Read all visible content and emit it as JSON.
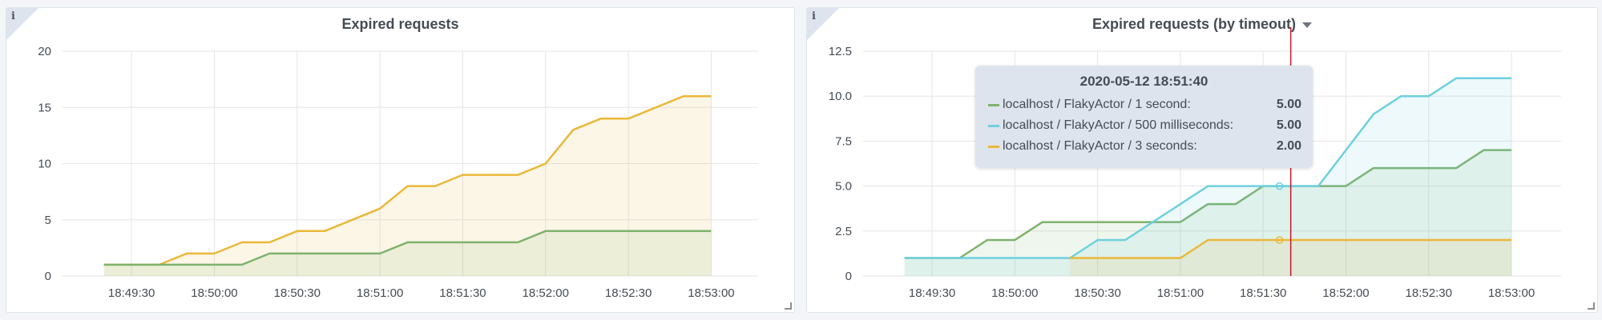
{
  "colors": {
    "green": "#7eb26d",
    "cyan": "#6ed0e0",
    "yellow": "#eab839",
    "cursor": "#c4162a"
  },
  "chart_data": [
    {
      "type": "area",
      "title": "Expired requests",
      "x_ticks": [
        "18:49:30",
        "18:50:00",
        "18:50:30",
        "18:51:00",
        "18:51:30",
        "18:52:00",
        "18:52:30",
        "18:53:00"
      ],
      "y_ticks": [
        "0",
        "5",
        "10",
        "15",
        "20"
      ],
      "ylim": [
        0,
        20
      ],
      "xlim": [
        "18:49:05",
        "18:53:17"
      ],
      "grid": true,
      "series": [
        {
          "color": "yellow",
          "points": [
            [
              "18:49:20",
              1
            ],
            [
              "18:49:40",
              1
            ],
            [
              "18:49:50",
              2
            ],
            [
              "18:50:00",
              2
            ],
            [
              "18:50:10",
              3
            ],
            [
              "18:50:20",
              3
            ],
            [
              "18:50:30",
              4
            ],
            [
              "18:50:40",
              4
            ],
            [
              "18:51:00",
              6
            ],
            [
              "18:51:10",
              8
            ],
            [
              "18:51:20",
              8
            ],
            [
              "18:51:30",
              9
            ],
            [
              "18:51:50",
              9
            ],
            [
              "18:52:00",
              10
            ],
            [
              "18:52:10",
              13
            ],
            [
              "18:52:20",
              14
            ],
            [
              "18:52:30",
              14
            ],
            [
              "18:52:50",
              16
            ],
            [
              "18:53:00",
              16
            ]
          ]
        },
        {
          "color": "green",
          "points": [
            [
              "18:49:20",
              1
            ],
            [
              "18:50:10",
              1
            ],
            [
              "18:50:20",
              2
            ],
            [
              "18:51:00",
              2
            ],
            [
              "18:51:10",
              3
            ],
            [
              "18:51:50",
              3
            ],
            [
              "18:52:00",
              4
            ],
            [
              "18:53:00",
              4
            ]
          ]
        }
      ]
    },
    {
      "type": "area",
      "title": "Expired requests (by timeout)",
      "x_ticks": [
        "18:49:30",
        "18:50:00",
        "18:50:30",
        "18:51:00",
        "18:51:30",
        "18:52:00",
        "18:52:30",
        "18:53:00"
      ],
      "y_ticks": [
        "0",
        "2.5",
        "5.0",
        "7.5",
        "10.0",
        "12.5"
      ],
      "ylim": [
        0,
        12.5
      ],
      "xlim": [
        "18:49:05",
        "18:53:18"
      ],
      "grid": true,
      "cursor_x": "18:51:40",
      "series": [
        {
          "name": "localhost / FlakyActor / 1 second",
          "color": "green",
          "points": [
            [
              "18:49:20",
              1
            ],
            [
              "18:49:40",
              1
            ],
            [
              "18:49:50",
              2
            ],
            [
              "18:50:00",
              2
            ],
            [
              "18:50:10",
              3
            ],
            [
              "18:51:00",
              3
            ],
            [
              "18:51:10",
              4
            ],
            [
              "18:51:20",
              4
            ],
            [
              "18:51:30",
              5
            ],
            [
              "18:52:00",
              5
            ],
            [
              "18:52:10",
              6
            ],
            [
              "18:52:40",
              6
            ],
            [
              "18:52:50",
              7
            ],
            [
              "18:53:00",
              7
            ]
          ]
        },
        {
          "name": "localhost / FlakyActor / 500 milliseconds",
          "color": "cyan",
          "points": [
            [
              "18:49:20",
              1
            ],
            [
              "18:50:20",
              1
            ],
            [
              "18:50:30",
              2
            ],
            [
              "18:50:40",
              2
            ],
            [
              "18:51:00",
              4
            ],
            [
              "18:51:10",
              5
            ],
            [
              "18:51:50",
              5
            ],
            [
              "18:52:10",
              9
            ],
            [
              "18:52:20",
              10
            ],
            [
              "18:52:30",
              10
            ],
            [
              "18:52:40",
              11
            ],
            [
              "18:53:00",
              11
            ]
          ]
        },
        {
          "name": "localhost / FlakyActor / 3 seconds",
          "color": "yellow",
          "points": [
            [
              "18:50:20",
              1
            ],
            [
              "18:51:00",
              1
            ],
            [
              "18:51:10",
              2
            ],
            [
              "18:53:00",
              2
            ]
          ]
        }
      ]
    }
  ],
  "tooltip": {
    "time": "2020-05-12 18:51:40",
    "rows": [
      {
        "label": "localhost / FlakyActor / 1 second:",
        "value": "5.00",
        "color": "green"
      },
      {
        "label": "localhost / FlakyActor / 500 milliseconds:",
        "value": "5.00",
        "color": "cyan"
      },
      {
        "label": "localhost / FlakyActor / 3 seconds:",
        "value": "2.00",
        "color": "yellow"
      }
    ]
  }
}
